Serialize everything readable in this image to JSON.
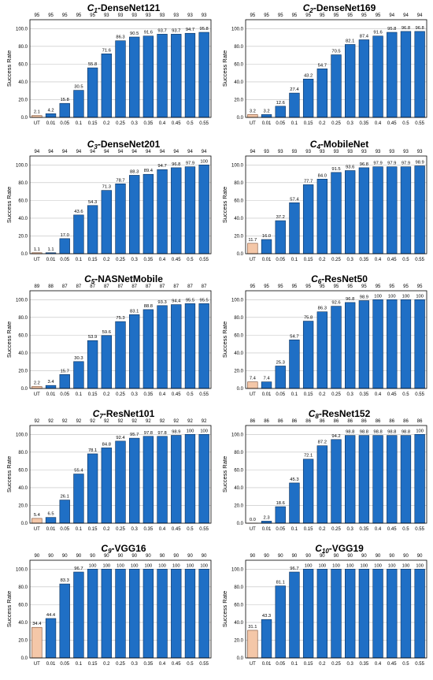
{
  "chart_data": [
    {
      "type": "bar",
      "title_prefix": "C",
      "title_sub": "1",
      "title_text": "-DenseNet121",
      "ylabel": "Success Rate",
      "xlabel": "",
      "ylim": [
        0,
        110
      ],
      "yticks": [
        "0.0",
        "20.0",
        "40.0",
        "60.0",
        "80.0",
        "100.0"
      ],
      "categories": [
        "UT",
        "0.01",
        "0.05",
        "0.1",
        "0.15",
        "0.2",
        "0.25",
        "0.3",
        "0.35",
        "0.4",
        "0.45",
        "0.5",
        "0.55"
      ],
      "values": [
        2.1,
        4.2,
        15.8,
        30.5,
        55.8,
        71.6,
        86.3,
        90.5,
        91.6,
        93.7,
        93.7,
        94.7,
        95.8
      ],
      "value_labels": [
        "2.1",
        "4.2",
        "15.8",
        "30.5",
        "55.8",
        "71.6",
        "86.3",
        "90.5",
        "91.6",
        "93.7",
        "93.7",
        "94.7",
        "95.8"
      ],
      "top_numbers": [
        "95",
        "95",
        "95",
        "95",
        "95",
        "93",
        "93",
        "93",
        "93",
        "93",
        "93",
        "93",
        "93"
      ],
      "highlight_index": 0
    },
    {
      "type": "bar",
      "title_prefix": "C",
      "title_sub": "2",
      "title_text": "-DenseNet169",
      "ylabel": "Success Rate",
      "xlabel": "",
      "ylim": [
        0,
        110
      ],
      "yticks": [
        "0.0",
        "20.0",
        "40.0",
        "60.0",
        "80.0",
        "100.0"
      ],
      "categories": [
        "UT",
        "0.01",
        "0.05",
        "0.1",
        "0.15",
        "0.2",
        "0.25",
        "0.3",
        "0.35",
        "0.4",
        "0.45",
        "0.5",
        "0.55"
      ],
      "values": [
        3.2,
        3.2,
        12.6,
        27.4,
        43.2,
        54.7,
        70.5,
        82.1,
        87.4,
        91.6,
        95.8,
        96.8,
        96.8
      ],
      "value_labels": [
        "3.2",
        "3.2",
        "12.6",
        "27.4",
        "43.2",
        "54.7",
        "70.5",
        "82.1",
        "87.4",
        "91.6",
        "95.8",
        "96.8",
        "96.8"
      ],
      "top_numbers": [
        "95",
        "95",
        "95",
        "95",
        "95",
        "95",
        "95",
        "95",
        "95",
        "95",
        "94",
        "94",
        "94"
      ],
      "highlight_index": 0
    },
    {
      "type": "bar",
      "title_prefix": "C",
      "title_sub": "3",
      "title_text": "-DenseNet201",
      "ylabel": "Success Rate",
      "xlabel": "",
      "ylim": [
        0,
        110
      ],
      "yticks": [
        "0.0",
        "20.0",
        "40.0",
        "60.0",
        "80.0",
        "100.0"
      ],
      "categories": [
        "UT",
        "0.01",
        "0.05",
        "0.1",
        "0.15",
        "0.2",
        "0.25",
        "0.3",
        "0.35",
        "0.4",
        "0.45",
        "0.5",
        "0.55"
      ],
      "values": [
        1.1,
        1.1,
        17.0,
        43.6,
        54.3,
        71.3,
        78.7,
        88.3,
        89.4,
        94.7,
        96.8,
        97.9,
        100
      ],
      "value_labels": [
        "1.1",
        "1.1",
        "17.0",
        "43.6",
        "54.3",
        "71.3",
        "78.7",
        "88.3",
        "89.4",
        "94.7",
        "96.8",
        "97.9",
        "100"
      ],
      "top_numbers": [
        "94",
        "94",
        "94",
        "94",
        "94",
        "94",
        "94",
        "94",
        "94",
        "94",
        "94",
        "94",
        "94"
      ],
      "highlight_index": 0
    },
    {
      "type": "bar",
      "title_prefix": "C",
      "title_sub": "4",
      "title_text": "-MobileNet",
      "ylabel": "Success Rate",
      "xlabel": "",
      "ylim": [
        0,
        110
      ],
      "yticks": [
        "0.0",
        "20.0",
        "40.0",
        "60.0",
        "80.0",
        "100.0"
      ],
      "categories": [
        "UT",
        "0.01",
        "0.05",
        "0.1",
        "0.15",
        "0.2",
        "0.25",
        "0.3",
        "0.35",
        "0.4",
        "0.45",
        "0.5",
        "0.55"
      ],
      "values": [
        11.7,
        16.0,
        37.2,
        57.4,
        77.7,
        84.0,
        91.5,
        93.6,
        96.8,
        97.9,
        97.9,
        97.9,
        98.9
      ],
      "value_labels": [
        "11.7",
        "16.0",
        "37.2",
        "57.4",
        "77.7",
        "84.0",
        "91.5",
        "93.6",
        "96.8",
        "97.9",
        "97.9",
        "97.9",
        "98.9"
      ],
      "top_numbers": [
        "94",
        "93",
        "93",
        "93",
        "93",
        "93",
        "93",
        "93",
        "93",
        "93",
        "93",
        "93",
        "93"
      ],
      "highlight_index": 0
    },
    {
      "type": "bar",
      "title_prefix": "C",
      "title_sub": "5",
      "title_text": "-NASNetMobile",
      "ylabel": "Success Rate",
      "xlabel": "",
      "ylim": [
        0,
        110
      ],
      "yticks": [
        "0.0",
        "20.0",
        "40.0",
        "60.0",
        "80.0",
        "100.0"
      ],
      "categories": [
        "UT",
        "0.01",
        "0.05",
        "0.1",
        "0.15",
        "0.2",
        "0.25",
        "0.3",
        "0.35",
        "0.4",
        "0.45",
        "0.5",
        "0.55"
      ],
      "values": [
        2.2,
        3.4,
        15.7,
        30.3,
        53.9,
        59.6,
        75.3,
        83.1,
        88.8,
        93.3,
        94.4,
        95.5,
        95.5
      ],
      "value_labels": [
        "2.2",
        "3.4",
        "15.7",
        "30.3",
        "53.9",
        "59.6",
        "75.3",
        "83.1",
        "88.8",
        "93.3",
        "94.4",
        "95.5",
        "95.5"
      ],
      "top_numbers": [
        "89",
        "88",
        "87",
        "87",
        "87",
        "87",
        "87",
        "87",
        "87",
        "87",
        "87",
        "87",
        "87"
      ],
      "highlight_index": 0
    },
    {
      "type": "bar",
      "title_prefix": "C",
      "title_sub": "6",
      "title_text": "-ResNet50",
      "ylabel": "Success Rate",
      "xlabel": "",
      "ylim": [
        0,
        110
      ],
      "yticks": [
        "0.0",
        "20.0",
        "40.0",
        "60.0",
        "80.0",
        "100.0"
      ],
      "categories": [
        "UT",
        "0.01",
        "0.05",
        "0.1",
        "0.15",
        "0.2",
        "0.25",
        "0.3",
        "0.35",
        "0.4",
        "0.45",
        "0.5",
        "0.55"
      ],
      "values": [
        7.4,
        7.4,
        25.3,
        54.7,
        75.8,
        86.3,
        92.6,
        96.8,
        98.9,
        100,
        100,
        100,
        100
      ],
      "value_labels": [
        "7.4",
        "7.4",
        "25.3",
        "54.7",
        "75.8",
        "86.3",
        "92.6",
        "96.8",
        "98.9",
        "100",
        "100",
        "100",
        "100"
      ],
      "top_numbers": [
        "95",
        "95",
        "95",
        "95",
        "95",
        "95",
        "95",
        "95",
        "95",
        "95",
        "95",
        "95",
        "95"
      ],
      "highlight_index": 0
    },
    {
      "type": "bar",
      "title_prefix": "C",
      "title_sub": "7",
      "title_text": "-ResNet101",
      "ylabel": "Success Rate",
      "xlabel": "",
      "ylim": [
        0,
        110
      ],
      "yticks": [
        "0.0",
        "20.0",
        "40.0",
        "60.0",
        "80.0",
        "100.0"
      ],
      "categories": [
        "UT",
        "0.01",
        "0.05",
        "0.1",
        "0.15",
        "0.2",
        "0.25",
        "0.3",
        "0.35",
        "0.4",
        "0.45",
        "0.5",
        "0.55"
      ],
      "values": [
        5.4,
        6.5,
        26.1,
        55.4,
        78.1,
        84.8,
        92.4,
        95.7,
        97.8,
        97.8,
        98.9,
        100,
        100
      ],
      "value_labels": [
        "5.4",
        "6.5",
        "26.1",
        "55.4",
        "78.1",
        "84.8",
        "92.4",
        "95.7",
        "97.8",
        "97.8",
        "98.9",
        "100",
        "100"
      ],
      "top_numbers": [
        "92",
        "92",
        "92",
        "92",
        "92",
        "92",
        "92",
        "92",
        "92",
        "92",
        "92",
        "92",
        "92"
      ],
      "highlight_index": 0
    },
    {
      "type": "bar",
      "title_prefix": "C",
      "title_sub": "8",
      "title_text": "-ResNet152",
      "ylabel": "Success Rate",
      "xlabel": "",
      "ylim": [
        0,
        110
      ],
      "yticks": [
        "0.0",
        "20.0",
        "40.0",
        "60.0",
        "80.0",
        "100.0"
      ],
      "categories": [
        "UT",
        "0.01",
        "0.05",
        "0.1",
        "0.15",
        "0.2",
        "0.25",
        "0.3",
        "0.35",
        "0.4",
        "0.45",
        "0.5",
        "0.55"
      ],
      "values": [
        0.0,
        2.3,
        18.6,
        45.3,
        72.1,
        87.2,
        94.2,
        98.8,
        98.8,
        98.8,
        98.8,
        98.8,
        100
      ],
      "value_labels": [
        "0.0",
        "2.3",
        "18.6",
        "45.3",
        "72.1",
        "87.2",
        "94.2",
        "98.8",
        "98.8",
        "98.8",
        "98.8",
        "98.8",
        "100"
      ],
      "top_numbers": [
        "86",
        "86",
        "86",
        "86",
        "86",
        "86",
        "86",
        "86",
        "86",
        "86",
        "86",
        "86",
        "86"
      ],
      "highlight_index": 0
    },
    {
      "type": "bar",
      "title_prefix": "C",
      "title_sub": "9",
      "title_text": "-VGG16",
      "ylabel": "Success Rate",
      "xlabel": "",
      "ylim": [
        0,
        110
      ],
      "yticks": [
        "0.0",
        "20.0",
        "40.0",
        "60.0",
        "80.0",
        "100.0"
      ],
      "categories": [
        "UT",
        "0.01",
        "0.05",
        "0.1",
        "0.15",
        "0.2",
        "0.25",
        "0.3",
        "0.35",
        "0.4",
        "0.45",
        "0.5",
        "0.55"
      ],
      "values": [
        34.4,
        44.4,
        83.3,
        96.7,
        100,
        100,
        100,
        100,
        100,
        100,
        100,
        100,
        100
      ],
      "value_labels": [
        "34.4",
        "44.4",
        "83.3",
        "96.7",
        "100",
        "100",
        "100",
        "100",
        "100",
        "100",
        "100",
        "100",
        "100"
      ],
      "top_numbers": [
        "90",
        "90",
        "90",
        "90",
        "90",
        "90",
        "90",
        "90",
        "90",
        "90",
        "90",
        "90",
        "90"
      ],
      "highlight_index": 0
    },
    {
      "type": "bar",
      "title_prefix": "C",
      "title_sub": "10",
      "title_text": "-VGG19",
      "ylabel": "Success Rate",
      "xlabel": "",
      "ylim": [
        0,
        110
      ],
      "yticks": [
        "0.0",
        "20.0",
        "40.0",
        "60.0",
        "80.0",
        "100.0"
      ],
      "categories": [
        "UT",
        "0.01",
        "0.05",
        "0.1",
        "0.15",
        "0.2",
        "0.25",
        "0.3",
        "0.35",
        "0.4",
        "0.45",
        "0.5",
        "0.55"
      ],
      "values": [
        31.1,
        43.3,
        81.1,
        96.7,
        100,
        100,
        100,
        100,
        100,
        100,
        100,
        100,
        100
      ],
      "value_labels": [
        "31.1",
        "43.3",
        "81.1",
        "96.7",
        "100",
        "100",
        "100",
        "100",
        "100",
        "100",
        "100",
        "100",
        "100"
      ],
      "top_numbers": [
        "90",
        "90",
        "90",
        "90",
        "90",
        "90",
        "90",
        "90",
        "90",
        "90",
        "90",
        "90",
        "90"
      ],
      "highlight_index": 0
    }
  ],
  "colors": {
    "bar": "#1f6fc5",
    "bar_edge": "#0a2f5a",
    "ut_bar": "#f4c7a8",
    "ut_edge": "#7a4a30",
    "grid": "#bfbfbf",
    "frame": "#000000"
  }
}
